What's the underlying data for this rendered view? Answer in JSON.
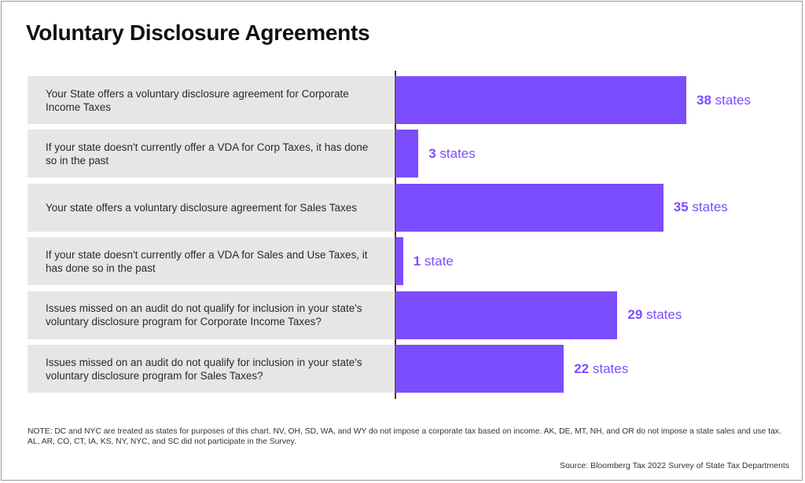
{
  "chart_data": {
    "type": "bar",
    "orientation": "horizontal",
    "title": "Voluntary Disclosure Agreements",
    "categories": [
      "Your State offers a voluntary disclosure agreement for Corporate Income Taxes",
      "If your state doesn't currently offer a VDA for Corp Taxes, it has done so in the past",
      "Your state offers a voluntary disclosure agreement for Sales Taxes",
      "If your state doesn't currently offer a VDA for Sales and Use Taxes, it has done so in the past",
      "Issues missed on an audit do not qualify for inclusion in your state's voluntary disclosure program for Corporate Income Taxes?",
      "Issues missed on an audit do not qualify for inclusion in your state's voluntary disclosure program for Sales Taxes?"
    ],
    "values": [
      38,
      3,
      35,
      1,
      29,
      22
    ],
    "value_labels": [
      {
        "number": "38",
        "unit": "states"
      },
      {
        "number": "3",
        "unit": "states"
      },
      {
        "number": "35",
        "unit": "states"
      },
      {
        "number": "1",
        "unit": "state"
      },
      {
        "number": "29",
        "unit": "states"
      },
      {
        "number": "22",
        "unit": "states"
      }
    ],
    "xlim": [
      0,
      40
    ],
    "grid": false,
    "bar_color": "#7c4dff",
    "label_bg_color": "#e6e6e6"
  },
  "note": "NOTE: DC and NYC are treated as states for purposes of this chart. NV, OH, SD, WA, and WY do not impose a corporate tax based on income. AK, DE, MT, NH, and OR do not impose a state sales and use tax. AL, AR, CO, CT, IA, KS, NY, NYC, and SC did not participate in the Survey.",
  "source": "Source: Bloomberg Tax 2022 Survey of State Tax Departments"
}
